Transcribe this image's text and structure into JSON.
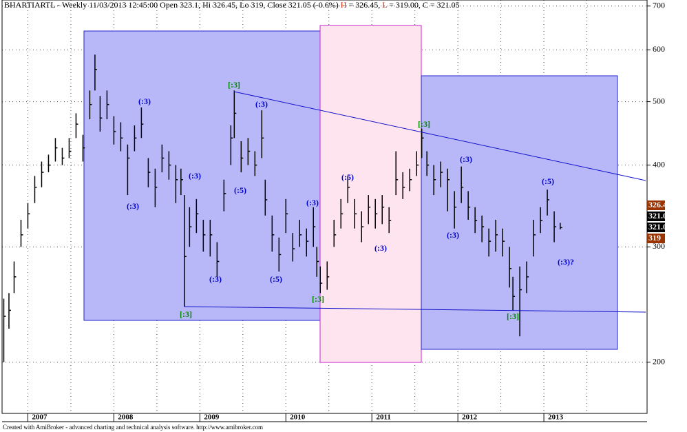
{
  "chart_data": {
    "type": "ohlc",
    "title": "BHARTIARTL - Weekly 11/03/2013 12:45:00 Open 323.1, Hi 326.45, Lo 319, Close 321.05 (-0.6%)",
    "summary": [
      "H",
      " = 326.45, ",
      "L",
      " = 319.00, C = 321.05"
    ],
    "footer": "Created with AmiBroker - advanced charting and technical analysis software. http://www.amibroker.com",
    "log_scale": true,
    "grid": true,
    "color": "#000000",
    "ylim": [
      167,
      715
    ],
    "yticks": [
      200,
      300,
      400,
      500,
      600,
      700
    ],
    "xlim": [
      2006.7,
      2014.2
    ],
    "xticks": [
      2007,
      2008,
      2009,
      2010,
      2011,
      2012,
      2013
    ],
    "x": [
      2006.72,
      2006.78,
      2006.84,
      2006.92,
      2007.0,
      2007.08,
      2007.16,
      2007.24,
      2007.32,
      2007.4,
      2007.48,
      2007.56,
      2007.64,
      2007.72,
      2007.78,
      2007.84,
      2007.92,
      2008.0,
      2008.08,
      2008.16,
      2008.24,
      2008.32,
      2008.4,
      2008.48,
      2008.56,
      2008.64,
      2008.72,
      2008.78,
      2008.82,
      2008.88,
      2008.96,
      2009.04,
      2009.12,
      2009.2,
      2009.28,
      2009.36,
      2009.4,
      2009.48,
      2009.56,
      2009.64,
      2009.72,
      2009.76,
      2009.84,
      2009.92,
      2010.0,
      2010.08,
      2010.16,
      2010.24,
      2010.32,
      2010.36,
      2010.4,
      2010.48,
      2010.56,
      2010.64,
      2010.72,
      2010.8,
      2010.88,
      2010.96,
      2011.04,
      2011.12,
      2011.2,
      2011.28,
      2011.36,
      2011.44,
      2011.52,
      2011.58,
      2011.64,
      2011.72,
      2011.8,
      2011.88,
      2011.96,
      2012.04,
      2012.12,
      2012.2,
      2012.28,
      2012.36,
      2012.44,
      2012.52,
      2012.6,
      2012.64,
      2012.72,
      2012.8,
      2012.88,
      2012.96,
      2013.04,
      2013.12,
      2013.19
    ],
    "high": [
      250,
      255,
      285,
      330,
      350,
      385,
      405,
      415,
      440,
      425,
      440,
      480,
      445,
      520,
      590,
      510,
      520,
      475,
      465,
      430,
      460,
      490,
      410,
      395,
      430,
      420,
      400,
      395,
      360,
      345,
      355,
      330,
      330,
      305,
      380,
      460,
      520,
      435,
      440,
      420,
      485,
      380,
      335,
      310,
      355,
      315,
      330,
      320,
      345,
      300,
      280,
      285,
      330,
      355,
      385,
      355,
      340,
      360,
      355,
      360,
      345,
      420,
      390,
      395,
      420,
      455,
      420,
      400,
      405,
      395,
      365,
      398,
      365,
      345,
      335,
      320,
      330,
      320,
      300,
      270,
      280,
      285,
      330,
      345,
      367,
      340,
      326.45
    ],
    "low": [
      200,
      225,
      255,
      300,
      320,
      350,
      370,
      390,
      405,
      400,
      410,
      440,
      405,
      470,
      520,
      450,
      470,
      430,
      420,
      360,
      420,
      440,
      370,
      345,
      390,
      380,
      350,
      360,
      243,
      300,
      315,
      295,
      290,
      270,
      340,
      400,
      440,
      390,
      400,
      385,
      410,
      335,
      295,
      275,
      315,
      285,
      300,
      290,
      300,
      270,
      255,
      258,
      300,
      320,
      350,
      320,
      305,
      325,
      320,
      325,
      315,
      360,
      355,
      365,
      385,
      410,
      385,
      360,
      370,
      340,
      320,
      350,
      330,
      315,
      305,
      290,
      295,
      290,
      260,
      240,
      219,
      255,
      290,
      315,
      335,
      305,
      319
    ],
    "close": [
      235,
      240,
      270,
      313,
      337,
      370,
      390,
      400,
      425,
      410,
      420,
      462,
      425,
      495,
      560,
      472,
      495,
      450,
      440,
      410,
      440,
      462,
      390,
      370,
      410,
      400,
      380,
      380,
      290,
      322,
      337,
      313,
      313,
      285,
      362,
      440,
      480,
      410,
      420,
      400,
      440,
      354,
      313,
      292,
      337,
      298,
      313,
      306,
      322,
      285,
      264,
      270,
      313,
      337,
      370,
      337,
      322,
      345,
      337,
      345,
      329,
      380,
      370,
      380,
      400,
      440,
      400,
      380,
      390,
      380,
      345,
      370,
      345,
      329,
      322,
      306,
      313,
      306,
      278,
      252,
      258,
      270,
      313,
      329,
      354,
      322,
      321.05
    ],
    "annotations": [
      {
        "text": "(:3)",
        "color": "#0000cc"
      },
      {
        "text": "(:3)",
        "color": "#0000cc"
      },
      {
        "text": "(:3)",
        "color": "#0000cc"
      },
      {
        "text": "(:3)",
        "color": "#0000cc"
      },
      {
        "text": "(:3)",
        "color": "#0000cc"
      },
      {
        "text": "(:5)",
        "color": "#0000cc"
      },
      {
        "text": "(:5)",
        "color": "#0000cc"
      },
      {
        "text": "(:3)",
        "color": "#0000cc"
      },
      {
        "text": "(:5)",
        "color": "#0000cc"
      },
      {
        "text": "(:3)",
        "color": "#0000cc"
      },
      {
        "text": "(:3)",
        "color": "#0000cc"
      },
      {
        "text": "(:3)",
        "color": "#0000cc"
      },
      {
        "text": "(:5)",
        "color": "#0000cc"
      },
      {
        "text": "(:3)?",
        "color": "#0000cc"
      },
      {
        "text": "[:3]",
        "color": "#008800"
      },
      {
        "text": "[:3]",
        "color": "#008800"
      },
      {
        "text": "[:3]",
        "color": "#008800"
      },
      {
        "text": "[:3]",
        "color": "#008800"
      },
      {
        "text": "[:3]",
        "color": "#008800"
      }
    ]
  }
}
